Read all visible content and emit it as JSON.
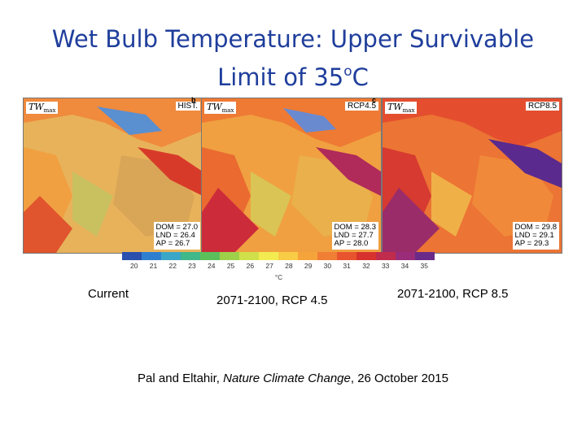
{
  "title": {
    "line1": "Wet Bulb Temperature:  Upper Survivable",
    "line2_text": "Limit of 35",
    "line2_sup": "o",
    "line2_end": "C"
  },
  "panels": [
    {
      "letter": "",
      "tw_label": "TW",
      "tw_sub": "max",
      "scenario": "HIST.",
      "dom": "DOM = 27.0",
      "lnd": "LND = 26.4",
      "ap": "AP = 26.7",
      "caption": "Current"
    },
    {
      "letter": "b",
      "tw_label": "TW",
      "tw_sub": "max",
      "scenario": "RCP4.5",
      "dom": "DOM = 28.3",
      "lnd": "LND = 27.7",
      "ap": "AP = 28.0",
      "caption": "2071-2100, RCP 4.5"
    },
    {
      "letter": "c",
      "tw_label": "TW",
      "tw_sub": "max",
      "scenario": "RCP8.5",
      "dom": "DOM = 29.8",
      "lnd": "LND = 29.1",
      "ap": "AP = 29.3",
      "caption": "2071-2100, RCP 8.5"
    }
  ],
  "colorbar": {
    "ticks": [
      "20",
      "21",
      "22",
      "23",
      "24",
      "25",
      "26",
      "27",
      "28",
      "29",
      "30",
      "31",
      "32",
      "33",
      "34",
      "35"
    ],
    "unit": "°C",
    "colors": [
      "#2a4fae",
      "#2f7fd0",
      "#3aa7c8",
      "#3fb88a",
      "#5cc05a",
      "#9ed04a",
      "#cfe04a",
      "#f3ec50",
      "#f8cc45",
      "#f5a43c",
      "#f07e34",
      "#e8542e",
      "#d8322e",
      "#c02c4c",
      "#9a2c7a",
      "#6a2a8a"
    ]
  },
  "citation": {
    "before": "Pal and Eltahir, ",
    "journal": "Nature Climate Change",
    "after": ", 26 October 2015"
  }
}
